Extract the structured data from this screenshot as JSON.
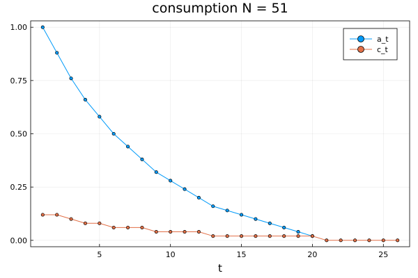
{
  "chart_data": {
    "type": "line",
    "title": "consumption N = 51",
    "xlabel": "t",
    "ylabel": "",
    "xlim": [
      0.15,
      26.85
    ],
    "ylim": [
      -0.03,
      1.03
    ],
    "xticks": [
      5,
      10,
      15,
      20,
      25
    ],
    "xtick_labels": [
      "5",
      "10",
      "15",
      "20",
      "25"
    ],
    "yticks": [
      0.0,
      0.25,
      0.5,
      0.75,
      1.0
    ],
    "ytick_labels": [
      "0.00",
      "0.25",
      "0.50",
      "0.75",
      "1.00"
    ],
    "grid": true,
    "legend_position": "top-right",
    "x": [
      1,
      2,
      3,
      4,
      5,
      6,
      7,
      8,
      9,
      10,
      11,
      12,
      13,
      14,
      15,
      16,
      17,
      18,
      19,
      20,
      21,
      22,
      23,
      24,
      25,
      26
    ],
    "series": [
      {
        "name": "a_t",
        "color": "#009af9",
        "values": [
          1.0,
          0.88,
          0.76,
          0.66,
          0.58,
          0.5,
          0.44,
          0.38,
          0.32,
          0.28,
          0.24,
          0.2,
          0.16,
          0.14,
          0.12,
          0.1,
          0.08,
          0.06,
          0.04,
          0.02,
          null,
          null,
          null,
          null,
          null,
          null
        ]
      },
      {
        "name": "c_t",
        "color": "#e26f46",
        "values": [
          0.12,
          0.12,
          0.1,
          0.08,
          0.08,
          0.06,
          0.06,
          0.06,
          0.04,
          0.04,
          0.04,
          0.04,
          0.02,
          0.02,
          0.02,
          0.02,
          0.02,
          0.02,
          0.02,
          0.02,
          0.0,
          0.0,
          0.0,
          0.0,
          0.0,
          0.0
        ]
      }
    ]
  }
}
